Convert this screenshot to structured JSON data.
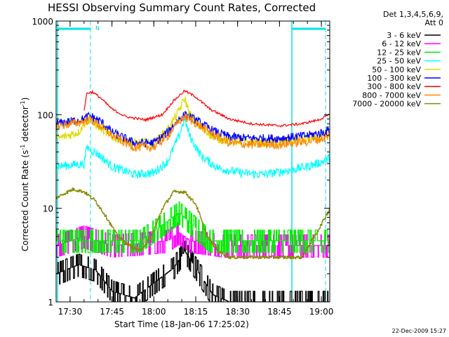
{
  "chart_data": {
    "type": "line",
    "title": "HESSI Observing Summary Count Rates, Corrected",
    "xlabel": "Start Time (18-Jan-06 17:25:02)",
    "ylabel_main": "Corrected Count Rate (s",
    "ylabel_sup1": "-1",
    "ylabel_mid": " detector",
    "ylabel_sup2": "-1",
    "ylabel_end": ")",
    "y_scale": "log",
    "ylim": [
      1,
      1000
    ],
    "xlim_minutes_after_start": [
      0,
      98
    ],
    "y_ticks": [
      "1",
      "10",
      "100",
      "1000"
    ],
    "x_ticks": [
      "17:30",
      "17:45",
      "18:00",
      "18:15",
      "18:30",
      "18:45",
      "19:00"
    ],
    "legend": {
      "header_line1": "Det 1,3,4,5,6,9,",
      "header_line2": "Att 0",
      "placement": "right"
    },
    "series": [
      {
        "name": "3 - 6 keV",
        "color": "#000000",
        "style": "noisy-steps",
        "points": [
          [
            0,
            2
          ],
          [
            8,
            2.5
          ],
          [
            14,
            2.2
          ],
          [
            20,
            1.3
          ],
          [
            28,
            1.1
          ],
          [
            35,
            1.6
          ],
          [
            42,
            2.3
          ],
          [
            46,
            3.5
          ],
          [
            50,
            2.3
          ],
          [
            56,
            1.2
          ],
          [
            62,
            1
          ],
          [
            70,
            1
          ],
          [
            80,
            1
          ],
          [
            98,
            1
          ]
        ]
      },
      {
        "name": "6 - 12 keV",
        "color": "#ff00ff",
        "style": "noisy-steps",
        "points": [
          [
            0,
            4
          ],
          [
            10,
            5
          ],
          [
            20,
            4
          ],
          [
            30,
            4.2
          ],
          [
            40,
            4.5
          ],
          [
            44,
            5.5
          ],
          [
            48,
            4.5
          ],
          [
            60,
            4
          ],
          [
            70,
            4
          ],
          [
            85,
            4
          ],
          [
            98,
            4
          ]
        ]
      },
      {
        "name": "12 - 25 keV",
        "color": "#00ee00",
        "style": "noisy-steps",
        "points": [
          [
            0,
            4.5
          ],
          [
            10,
            4.5
          ],
          [
            20,
            4.5
          ],
          [
            30,
            4.5
          ],
          [
            36,
            6
          ],
          [
            44,
            9
          ],
          [
            48,
            7
          ],
          [
            55,
            4.5
          ],
          [
            70,
            4.5
          ],
          [
            85,
            4.5
          ],
          [
            88,
            4.5
          ],
          [
            98,
            4.5
          ]
        ]
      },
      {
        "name": "25 - 50 keV",
        "color": "#00ffff",
        "style": "noisy",
        "points": [
          [
            0,
            28
          ],
          [
            10,
            30
          ],
          [
            11,
            45
          ],
          [
            15,
            38
          ],
          [
            20,
            28
          ],
          [
            28,
            23
          ],
          [
            35,
            24
          ],
          [
            40,
            32
          ],
          [
            44,
            60
          ],
          [
            46,
            90
          ],
          [
            48,
            58
          ],
          [
            52,
            36
          ],
          [
            58,
            27
          ],
          [
            66,
            24
          ],
          [
            74,
            23
          ],
          [
            82,
            25
          ],
          [
            90,
            28
          ],
          [
            96,
            32
          ],
          [
            98,
            35
          ]
        ]
      },
      {
        "name": "50 - 100 keV",
        "color": "#dddd00",
        "style": "noisy",
        "points": [
          [
            0,
            55
          ],
          [
            8,
            65
          ],
          [
            10,
            80
          ],
          [
            12,
            90
          ],
          [
            15,
            75
          ],
          [
            20,
            58
          ],
          [
            28,
            50
          ],
          [
            35,
            50
          ],
          [
            40,
            70
          ],
          [
            44,
            110
          ],
          [
            46,
            150
          ],
          [
            48,
            100
          ],
          [
            52,
            70
          ],
          [
            58,
            55
          ],
          [
            66,
            52
          ],
          [
            74,
            50
          ],
          [
            82,
            52
          ],
          [
            90,
            55
          ],
          [
            96,
            58
          ],
          [
            98,
            60
          ]
        ]
      },
      {
        "name": "100 - 300 keV",
        "color": "#0000ff",
        "style": "noisy",
        "points": [
          [
            0,
            80
          ],
          [
            10,
            90
          ],
          [
            12,
            98
          ],
          [
            16,
            85
          ],
          [
            20,
            65
          ],
          [
            28,
            50
          ],
          [
            35,
            50
          ],
          [
            40,
            65
          ],
          [
            44,
            90
          ],
          [
            46,
            100
          ],
          [
            50,
            88
          ],
          [
            56,
            68
          ],
          [
            62,
            58
          ],
          [
            70,
            56
          ],
          [
            80,
            56
          ],
          [
            90,
            60
          ],
          [
            96,
            65
          ],
          [
            98,
            70
          ]
        ]
      },
      {
        "name": "300 - 800 keV",
        "color": "#ff0000",
        "style": "smooth",
        "points": [
          [
            10,
            110
          ],
          [
            11,
            170
          ],
          [
            13,
            175
          ],
          [
            16,
            150
          ],
          [
            20,
            115
          ],
          [
            25,
            95
          ],
          [
            32,
            88
          ],
          [
            38,
            100
          ],
          [
            42,
            140
          ],
          [
            46,
            180
          ],
          [
            50,
            155
          ],
          [
            55,
            115
          ],
          [
            62,
            90
          ],
          [
            70,
            80
          ],
          [
            80,
            76
          ],
          [
            88,
            80
          ],
          [
            94,
            88
          ],
          [
            98,
            100
          ]
        ]
      },
      {
        "name": "800 - 7000 keV",
        "color": "#ff8800",
        "style": "noisy",
        "points": [
          [
            0,
            75
          ],
          [
            10,
            85
          ],
          [
            12,
            90
          ],
          [
            16,
            75
          ],
          [
            20,
            60
          ],
          [
            28,
            45
          ],
          [
            35,
            45
          ],
          [
            40,
            60
          ],
          [
            44,
            85
          ],
          [
            46,
            95
          ],
          [
            50,
            82
          ],
          [
            56,
            62
          ],
          [
            62,
            50
          ],
          [
            70,
            48
          ],
          [
            80,
            48
          ],
          [
            90,
            52
          ],
          [
            96,
            56
          ],
          [
            98,
            60
          ]
        ]
      },
      {
        "name": "7000 - 20000 keV",
        "color": "#888800",
        "style": "steps",
        "points": [
          [
            0,
            13
          ],
          [
            6,
            16
          ],
          [
            10,
            15
          ],
          [
            14,
            12
          ],
          [
            18,
            8
          ],
          [
            22,
            5
          ],
          [
            26,
            4
          ],
          [
            30,
            3.5
          ],
          [
            34,
            5
          ],
          [
            38,
            10
          ],
          [
            42,
            15
          ],
          [
            46,
            15
          ],
          [
            50,
            11
          ],
          [
            54,
            5
          ],
          [
            58,
            3.5
          ],
          [
            62,
            3
          ],
          [
            70,
            3
          ],
          [
            80,
            3
          ],
          [
            88,
            3
          ],
          [
            94,
            6
          ],
          [
            98,
            10
          ]
        ]
      }
    ]
  },
  "annotations": {
    "night_marker": "N",
    "timestamp": "22-Dec-2009 15:27"
  }
}
